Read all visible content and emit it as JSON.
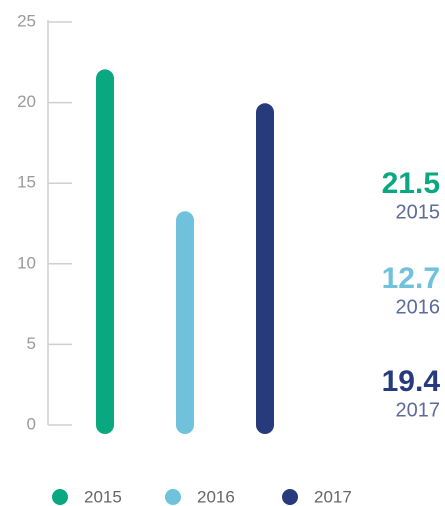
{
  "chart_data": {
    "type": "bar",
    "categories": [
      "2015",
      "2016",
      "2017"
    ],
    "values": [
      21.5,
      12.7,
      19.4
    ],
    "colors": [
      "#0aa881",
      "#6fc1dc",
      "#263a7c"
    ],
    "ylim": [
      0,
      25
    ],
    "yticks": [
      0,
      5,
      10,
      15,
      20,
      25
    ]
  }
}
